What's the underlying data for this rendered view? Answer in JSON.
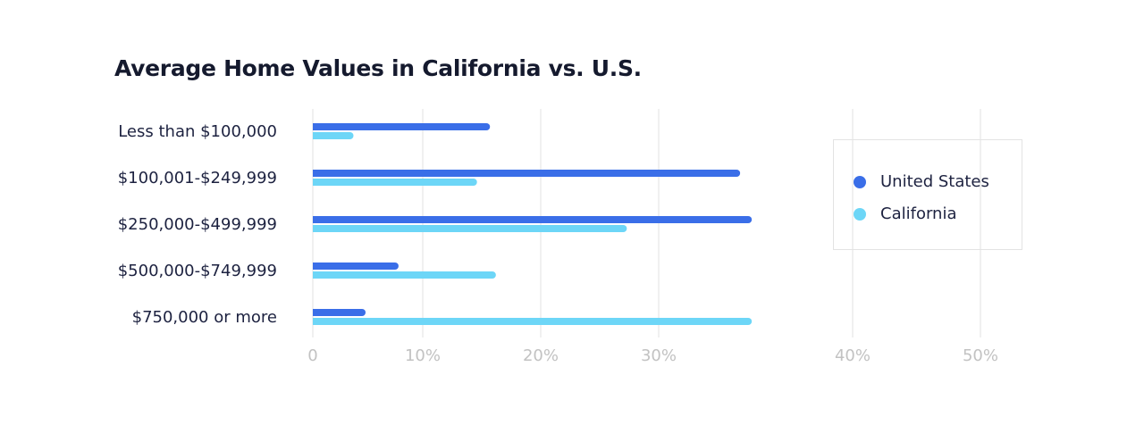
{
  "chart_data": {
    "type": "bar",
    "orientation": "horizontal",
    "title": "Average Home Values in California vs. U.S.",
    "categories": [
      "Less than $100,000",
      "$100,001-$249,999",
      "$250,000-$499,999",
      "$500,000-$749,999",
      "$750,000 or more"
    ],
    "series": [
      {
        "name": "United States",
        "color": "#3a6ee8",
        "values": [
          15.7,
          34.2,
          34.8,
          7.8,
          4.8
        ]
      },
      {
        "name": "California",
        "color": "#6dd6f7",
        "values": [
          3.7,
          14.6,
          27.3,
          16.2,
          34.8
        ]
      }
    ],
    "x_ticks": [
      0,
      10,
      20,
      30,
      40,
      50
    ],
    "x_tick_labels": [
      "0",
      "10%",
      "20%",
      "30%",
      "40%",
      "50%"
    ],
    "xlim": [
      0,
      50
    ],
    "grid": true,
    "legend": "right"
  }
}
